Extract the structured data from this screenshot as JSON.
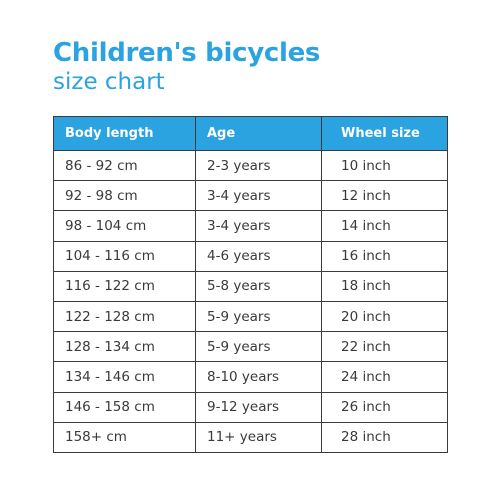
{
  "header": {
    "title": "Children's bicycles",
    "subtitle": "size chart"
  },
  "colors": {
    "accent": "#2aa3e0",
    "border": "#3b3b3b",
    "text": "#3a3a3a"
  },
  "table": {
    "columns": [
      "Body length",
      "Age",
      "Wheel size"
    ],
    "rows": [
      [
        "86 - 92 cm",
        "2-3 years",
        "10 inch"
      ],
      [
        "92 - 98 cm",
        "3-4 years",
        "12 inch"
      ],
      [
        "98 - 104 cm",
        "3-4 years",
        "14 inch"
      ],
      [
        "104 - 116 cm",
        "4-6 years",
        "16 inch"
      ],
      [
        "116 - 122 cm",
        "5-8 years",
        "18 inch"
      ],
      [
        "122 - 128 cm",
        "5-9 years",
        "20 inch"
      ],
      [
        "128 - 134 cm",
        "5-9 years",
        "22 inch"
      ],
      [
        "134 - 146 cm",
        "8-10 years",
        "24 inch"
      ],
      [
        "146 - 158 cm",
        "9-12 years",
        "26 inch"
      ],
      [
        "158+ cm",
        "11+ years",
        "28 inch"
      ]
    ]
  }
}
